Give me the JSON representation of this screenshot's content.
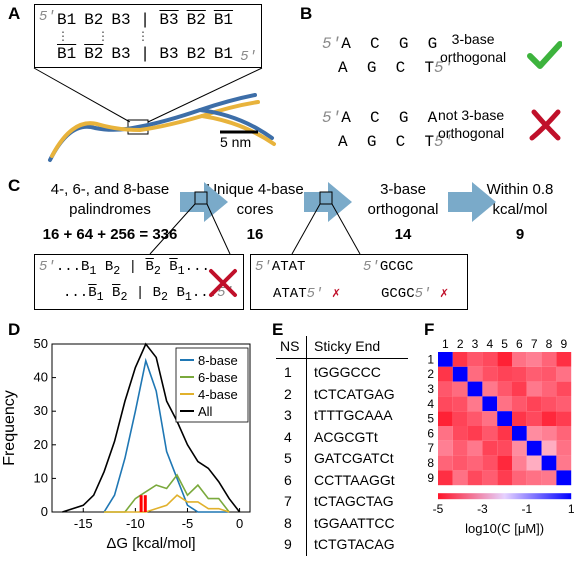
{
  "panels": {
    "A": "A",
    "B": "B",
    "C": "C",
    "D": "D",
    "E": "E",
    "F": "F"
  },
  "panelA": {
    "row1": [
      "B1",
      "B2",
      "B3",
      "B3",
      "B2",
      "B1"
    ],
    "row2": [
      "B1",
      "B2",
      "B3",
      "B3",
      "B2",
      "B1"
    ],
    "five_prime": "5′",
    "scale_bar": "5 nm"
  },
  "panelB": {
    "pair1_top": [
      "A",
      "C",
      "G",
      "G"
    ],
    "pair1_bottom": [
      "A",
      "G",
      "C",
      "T"
    ],
    "pair1_label_l1": "3-base",
    "pair1_label_l2": "orthogonal",
    "pair2_top": [
      "A",
      "C",
      "G",
      "A"
    ],
    "pair2_bottom": [
      "A",
      "G",
      "C",
      "T"
    ],
    "pair2_label_l1": "not 3-base",
    "pair2_label_l2": "orthogonal",
    "five_prime": "5′"
  },
  "panelC": {
    "step1_l1": "4-, 6-, and 8-base",
    "step1_l2": "palindromes",
    "step1_count": "16 + 64 + 256 = 336",
    "step2_l1": "Unique 4-base",
    "step2_l2": "cores",
    "step2_count": "16",
    "step3_l1": "3-base",
    "step3_l2": "orthogonal",
    "step3_count": "14",
    "step4_l1": "Within 0.8",
    "step4_l2": "kcal/mol",
    "step4_count": "9",
    "inset1_top": "...B1 B2 | B2 B1...",
    "inset2_seqA": "ATAT",
    "inset2_seqB": "GCGC"
  },
  "chart_data": [
    {
      "type": "line",
      "xlabel": "ΔG [kcal/mol]",
      "ylabel": "Frequency",
      "xlim": [
        -18,
        1
      ],
      "ylim": [
        0,
        50
      ],
      "xticks": [
        -15,
        -10,
        -5,
        0
      ],
      "yticks": [
        0,
        10,
        20,
        30,
        40,
        50
      ],
      "legend_position": "top-right",
      "series": [
        {
          "name": "8-base",
          "color": "#1f77b4",
          "x": [
            -13,
            -12,
            -11,
            -10,
            -9,
            -8,
            -7,
            -6,
            -5,
            -4,
            -3,
            -2,
            -1
          ],
          "y": [
            0,
            5,
            16,
            30,
            45,
            36,
            18,
            10,
            2,
            0,
            0,
            0,
            0
          ]
        },
        {
          "name": "6-base",
          "color": "#7aa93c",
          "x": [
            -13,
            -12,
            -11,
            -10,
            -9,
            -8,
            -7,
            -6,
            -5,
            -4,
            -3,
            -2,
            -1
          ],
          "y": [
            0,
            0,
            0,
            4,
            6,
            8,
            7,
            11,
            5,
            8,
            4,
            4,
            0
          ]
        },
        {
          "name": "4-base",
          "color": "#e1b12c",
          "x": [
            -13,
            -12,
            -11,
            -10,
            -9,
            -8,
            -7,
            -6,
            -5,
            -4,
            -3,
            -2,
            -1
          ],
          "y": [
            0,
            0,
            0,
            0,
            0,
            1,
            2,
            5,
            3,
            3,
            1,
            1,
            0
          ]
        },
        {
          "name": "All",
          "color": "#000000",
          "x": [
            -17,
            -15,
            -14,
            -13,
            -12,
            -11,
            -10,
            -9,
            -8,
            -7,
            -6,
            -5,
            -4,
            -3,
            -2,
            -1,
            0
          ],
          "y": [
            0,
            2,
            5,
            12,
            21,
            33,
            43,
            50,
            46,
            33,
            27,
            20,
            15,
            13,
            9,
            4,
            0
          ]
        }
      ],
      "highlight_bars": {
        "color": "#ff0000",
        "x": [
          -9.4,
          -9.0
        ],
        "y": [
          5,
          5
        ]
      }
    },
    {
      "type": "heatmap",
      "rows": [
        "1",
        "2",
        "3",
        "4",
        "5",
        "6",
        "7",
        "8",
        "9"
      ],
      "cols": [
        "1",
        "2",
        "3",
        "4",
        "5",
        "6",
        "7",
        "8",
        "9"
      ],
      "xlabel": "log10(C [μM])",
      "colorbar_ticks": [
        "-5",
        "-3",
        "-1",
        "1"
      ],
      "vmin": -5,
      "vmax": 1,
      "values": [
        [
          1,
          -4.5,
          -4,
          -4.2,
          -4.8,
          -3.6,
          -3.4,
          -3.8,
          -4.6
        ],
        [
          -4.5,
          1,
          -3.7,
          -4.1,
          -4.3,
          -4.2,
          -3.9,
          -4.0,
          -3.6
        ],
        [
          -4,
          -3.7,
          1,
          -3.5,
          -4.0,
          -4.4,
          -3.5,
          -3.8,
          -4.2
        ],
        [
          -4.2,
          -4.1,
          -3.5,
          1,
          -3.6,
          -4.0,
          -4.3,
          -4.1,
          -3.9
        ],
        [
          -4.8,
          -4.3,
          -4.0,
          -3.6,
          1,
          -4.5,
          -4.2,
          -4.7,
          -4.4
        ],
        [
          -3.6,
          -4.2,
          -4.4,
          -4.0,
          -4.5,
          1,
          -3.2,
          -3.4,
          -3.8
        ],
        [
          -3.4,
          -3.9,
          -3.5,
          -4.3,
          -4.2,
          -3.2,
          1,
          -2.7,
          -3.6
        ],
        [
          -3.8,
          -4.0,
          -3.8,
          -4.1,
          -4.7,
          -3.4,
          -2.7,
          1,
          -3.5
        ],
        [
          -4.6,
          -3.6,
          -4.2,
          -3.9,
          -4.4,
          -3.8,
          -3.6,
          -3.5,
          1
        ]
      ]
    }
  ],
  "tableE": {
    "header_ns": "NS",
    "header_end": "Sticky End",
    "rows": [
      {
        "n": "1",
        "seq": "tGGGCCC"
      },
      {
        "n": "2",
        "seq": "tCTCATGAG"
      },
      {
        "n": "3",
        "seq": "tTTTGCAAA"
      },
      {
        "n": "4",
        "seq": "ACGCGTt"
      },
      {
        "n": "5",
        "seq": "GATCGATCt"
      },
      {
        "n": "6",
        "seq": "CCTTAAGGt"
      },
      {
        "n": "7",
        "seq": "tCTAGCTAG"
      },
      {
        "n": "8",
        "seq": "tGGAATTCC"
      },
      {
        "n": "9",
        "seq": "tCTGTACAG"
      }
    ]
  },
  "colors": {
    "check": "#3db33d",
    "cross": "#c0102a",
    "arrow": "#7aaac9",
    "dna_blue": "#3d6ea8",
    "dna_gold": "#e8b33c"
  }
}
